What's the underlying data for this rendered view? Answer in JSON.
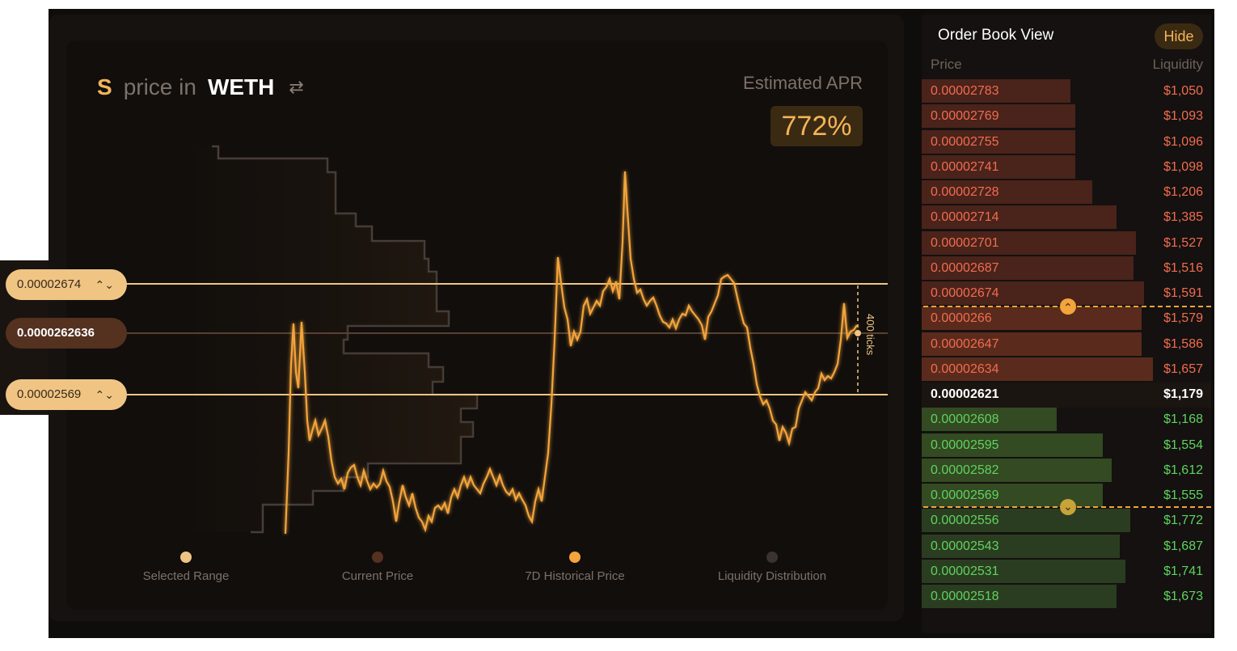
{
  "chart": {
    "base_token": "S",
    "price_in_label": "price in",
    "quote_token": "WETH",
    "swap_icon": "swap-arrows-icon",
    "apr_label": "Estimated APR",
    "apr_value": "772%",
    "upper_price": "0.00002674",
    "current_price": "0.0000262636",
    "lower_price": "0.00002569",
    "ticks_label": "400 ticks",
    "legend": [
      {
        "label": "Selected Range",
        "color": "#f0c584"
      },
      {
        "label": "Current Price",
        "color": "#55311f"
      },
      {
        "label": "7D Historical Price",
        "color": "#f3a43a"
      },
      {
        "label": "Liquidity Distribution",
        "color": "#3a3330"
      }
    ]
  },
  "order_book": {
    "title": "Order Book View",
    "hide_label": "Hide",
    "col_price": "Price",
    "col_liquidity": "Liquidity",
    "asks": [
      {
        "price": "0.00002783",
        "liquidity": "$1,050",
        "level": 0.54
      },
      {
        "price": "0.00002769",
        "liquidity": "$1,093",
        "level": 0.56
      },
      {
        "price": "0.00002755",
        "liquidity": "$1,096",
        "level": 0.56
      },
      {
        "price": "0.00002741",
        "liquidity": "$1,098",
        "level": 0.56
      },
      {
        "price": "0.00002728",
        "liquidity": "$1,206",
        "level": 0.62
      },
      {
        "price": "0.00002714",
        "liquidity": "$1,385",
        "level": 0.71
      },
      {
        "price": "0.00002701",
        "liquidity": "$1,527",
        "level": 0.78
      },
      {
        "price": "0.00002687",
        "liquidity": "$1,516",
        "level": 0.77
      },
      {
        "price": "0.00002674",
        "liquidity": "$1,591",
        "level": 0.81
      },
      {
        "price": "0.0000266",
        "liquidity": "$1,579",
        "level": 0.8
      },
      {
        "price": "0.00002647",
        "liquidity": "$1,586",
        "level": 0.8
      },
      {
        "price": "0.00002634",
        "liquidity": "$1,657",
        "level": 0.84
      }
    ],
    "current": {
      "price": "0.00002621",
      "liquidity": "$1,179"
    },
    "bids": [
      {
        "price": "0.00002608",
        "liquidity": "$1,168",
        "level": 0.49
      },
      {
        "price": "0.00002595",
        "liquidity": "$1,554",
        "level": 0.66
      },
      {
        "price": "0.00002582",
        "liquidity": "$1,612",
        "level": 0.69
      },
      {
        "price": "0.00002569",
        "liquidity": "$1,555",
        "level": 0.66
      },
      {
        "price": "0.00002556",
        "liquidity": "$1,772",
        "level": 0.76
      },
      {
        "price": "0.00002543",
        "liquidity": "$1,687",
        "level": 0.72
      },
      {
        "price": "0.00002531",
        "liquidity": "$1,741",
        "level": 0.74
      },
      {
        "price": "0.00002518",
        "liquidity": "$1,673",
        "level": 0.71
      }
    ],
    "colors": {
      "ask_text": "#f26c4f",
      "bid_text": "#5fd35f",
      "ask_bar": "#4a231b",
      "bid_bar": "#2b3d20",
      "ask_bar_in_range": "#5a2b1d",
      "bid_bar_in_range": "#334a22"
    }
  }
}
